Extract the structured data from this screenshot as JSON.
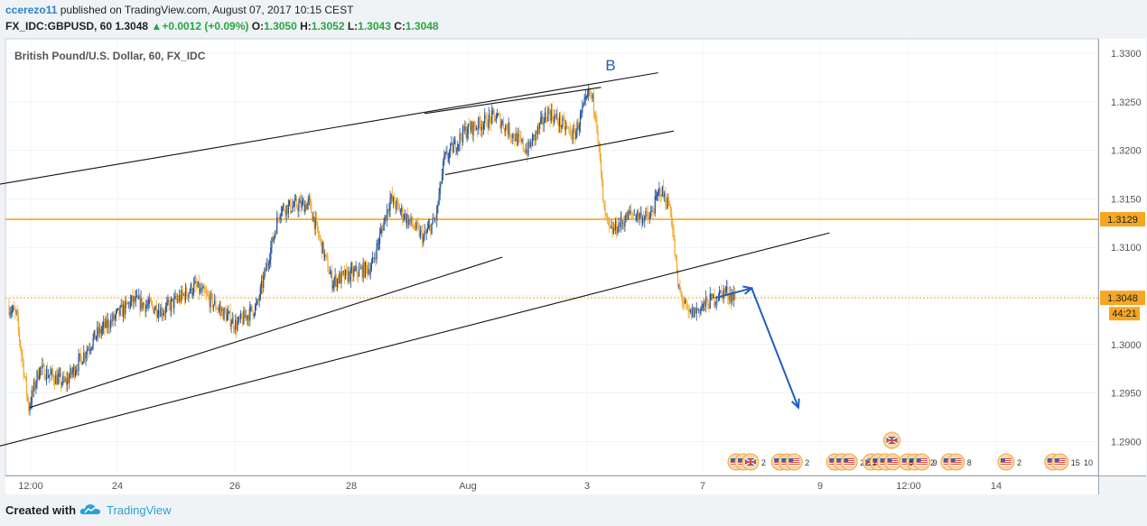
{
  "header": {
    "author": "ccerezo11",
    "published": "published on TradingView.com, August 07, 2017 10:15 CEST",
    "symbol": "FX_IDC:GBPUSD, 60",
    "price": "1.3048",
    "change": "+0.0012 (+0.09%)",
    "o_label": "O:",
    "o": "1.3050",
    "h_label": "H:",
    "h": "1.3052",
    "l_label": "L:",
    "l": "1.3043",
    "c_label": "C:",
    "c": "1.3048"
  },
  "footer": {
    "created": "Created with",
    "brand": "TradingView"
  },
  "colors": {
    "up_candle": "#1e4f9c",
    "down_candle": "#f5a623",
    "orange_line": "#f5a623",
    "arrow": "#1f5fbf",
    "flag_red": "#e0464a",
    "flag_blue": "#3566b4"
  },
  "chart_data": {
    "type": "candlestick",
    "title": "British Pound/U.S. Dollar, 60, FX_IDC",
    "price_axis": {
      "ticks": [
        "1.3300",
        "1.3250",
        "1.3200",
        "1.3150",
        "1.3100",
        "1.3050",
        "1.3000",
        "1.2950",
        "1.2900"
      ],
      "range": [
        1.2865,
        1.3315
      ]
    },
    "time_axis": {
      "ticks": [
        "12:00",
        "24",
        "26",
        "28",
        "Aug",
        "3",
        "7",
        "9",
        "12:00",
        "14"
      ]
    },
    "horizontal_level": {
      "value": 1.3129,
      "label": "1.3129"
    },
    "current_price": {
      "value": 1.3048,
      "label": "1.3048",
      "countdown": "44:21"
    },
    "wave_label": "B",
    "anchors": [
      {
        "t": 0,
        "p": 1.304
      },
      {
        "t": 8,
        "p": 1.303
      },
      {
        "t": 20,
        "p": 1.2935
      },
      {
        "t": 30,
        "p": 1.2975
      },
      {
        "t": 55,
        "p": 1.296
      },
      {
        "t": 85,
        "p": 1.301
      },
      {
        "t": 120,
        "p": 1.3045
      },
      {
        "t": 150,
        "p": 1.3035
      },
      {
        "t": 180,
        "p": 1.306
      },
      {
        "t": 195,
        "p": 1.3045
      },
      {
        "t": 220,
        "p": 1.302
      },
      {
        "t": 240,
        "p": 1.304
      },
      {
        "t": 262,
        "p": 1.314
      },
      {
        "t": 290,
        "p": 1.3145
      },
      {
        "t": 312,
        "p": 1.3065
      },
      {
        "t": 350,
        "p": 1.308
      },
      {
        "t": 368,
        "p": 1.315
      },
      {
        "t": 400,
        "p": 1.311
      },
      {
        "t": 412,
        "p": 1.313
      },
      {
        "t": 420,
        "p": 1.319
      },
      {
        "t": 440,
        "p": 1.322
      },
      {
        "t": 470,
        "p": 1.3235
      },
      {
        "t": 500,
        "p": 1.32
      },
      {
        "t": 520,
        "p": 1.324
      },
      {
        "t": 545,
        "p": 1.3215
      },
      {
        "t": 560,
        "p": 1.326
      },
      {
        "t": 566,
        "p": 1.324
      },
      {
        "t": 574,
        "p": 1.3135
      },
      {
        "t": 580,
        "p": 1.3115
      },
      {
        "t": 600,
        "p": 1.3135
      },
      {
        "t": 618,
        "p": 1.313
      },
      {
        "t": 628,
        "p": 1.316
      },
      {
        "t": 638,
        "p": 1.314
      },
      {
        "t": 645,
        "p": 1.306
      },
      {
        "t": 655,
        "p": 1.303
      },
      {
        "t": 670,
        "p": 1.304
      },
      {
        "t": 690,
        "p": 1.3055
      },
      {
        "t": 700,
        "p": 1.3048
      }
    ],
    "candle_count": 700,
    "trendlines": [
      {
        "from": {
          "t": -10,
          "p": 1.3165
        },
        "to": {
          "t": 625,
          "p": 1.328
        }
      },
      {
        "from": {
          "t": 400,
          "p": 1.3238
        },
        "to": {
          "t": 570,
          "p": 1.3265
        }
      },
      {
        "from": {
          "t": 420,
          "p": 1.3175
        },
        "to": {
          "t": 640,
          "p": 1.322
        }
      },
      {
        "from": {
          "t": 20,
          "p": 1.2935
        },
        "to": {
          "t": 475,
          "p": 1.309
        }
      },
      {
        "from": {
          "t": -10,
          "p": 1.2895
        },
        "to": {
          "t": 790,
          "p": 1.3115
        }
      }
    ],
    "projection": [
      {
        "t": 680,
        "p": 1.3048
      },
      {
        "t": 715,
        "p": 1.3058
      },
      {
        "t": 760,
        "p": 1.2935
      }
    ],
    "event_markers": [
      {
        "t": 700,
        "flags": [
          "us",
          "us",
          "uk"
        ],
        "count": "2"
      },
      {
        "t": 742,
        "flags": [
          "us",
          "us",
          "us"
        ],
        "count": "2"
      },
      {
        "t": 795,
        "flags": [
          "us",
          "us",
          "us"
        ],
        "count": "2"
      },
      {
        "t": 830,
        "flags": [
          "uk",
          "us",
          "us",
          "us"
        ],
        "count": "2"
      },
      {
        "t": 865,
        "flags": [
          "us",
          "us",
          "us"
        ],
        "count": "9"
      },
      {
        "t": 905,
        "flags": [
          "us",
          "us"
        ],
        "count": "8"
      },
      {
        "t": 960,
        "flags": [
          "us"
        ],
        "count": "2"
      },
      {
        "t": 1005,
        "flags": [
          "us",
          "us"
        ],
        "count": "15"
      }
    ],
    "event_counts_extra": [
      "2",
      "2",
      "8",
      "2",
      "10"
    ],
    "uk_raised_marker": {
      "t": 850
    }
  }
}
